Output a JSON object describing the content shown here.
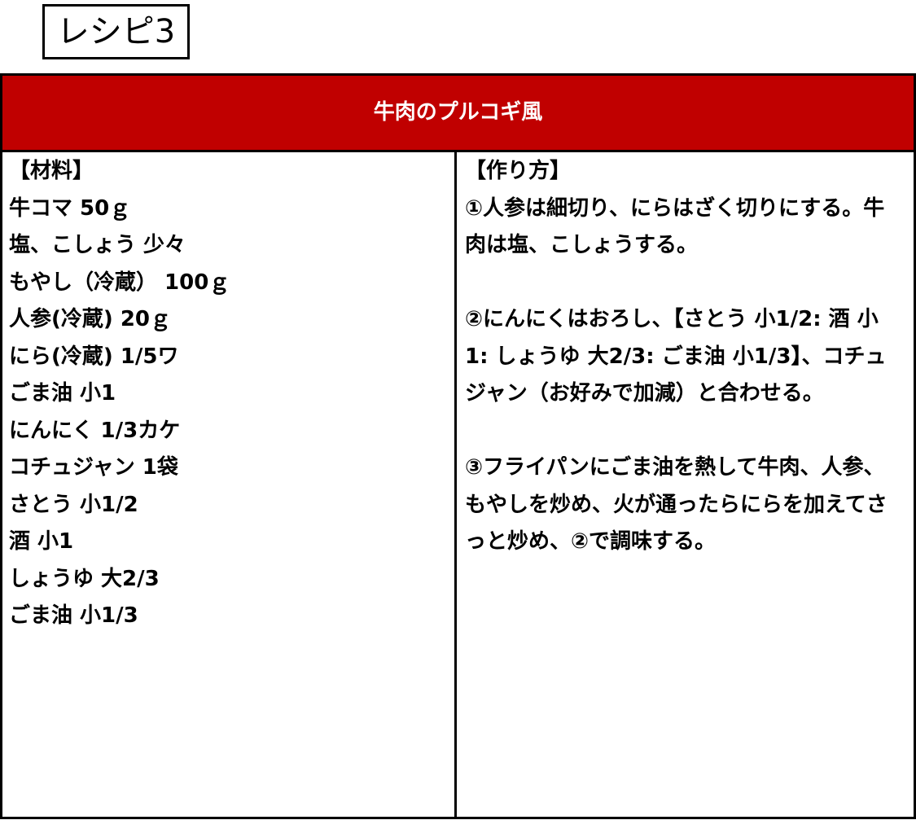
{
  "recipe_label": "レシピ3",
  "title": "牛肉のプルコギ風",
  "header_color": "#c00000",
  "ingredients": {
    "heading": "【材料】",
    "items": [
      "牛コマ 50ｇ",
      "塩、こしょう 少々",
      "もやし（冷蔵） 100ｇ",
      "人参(冷蔵) 20ｇ",
      "にら(冷蔵) 1/5ワ",
      "ごま油 小1",
      "にんにく 1/3カケ",
      "コチュジャン 1袋",
      "さとう 小1/2",
      "酒 小1",
      "しょうゆ 大2/3",
      "ごま油 小1/3"
    ]
  },
  "method": {
    "heading": "【作り方】",
    "steps": [
      "①人参は細切り、にらはざく切りにする。牛肉は塩、こしょうする。",
      "②にんにくはおろし、【さとう 小1/2: 酒 小1: しょうゆ 大2/3: ごま油 小1/3】、コチュジャン（お好みで加減）と合わせる。",
      "③フライパンにごま油を熱して牛肉、人参、もやしを炒め、火が通ったらにらを加えてさっと炒め、②で調味する。"
    ]
  }
}
